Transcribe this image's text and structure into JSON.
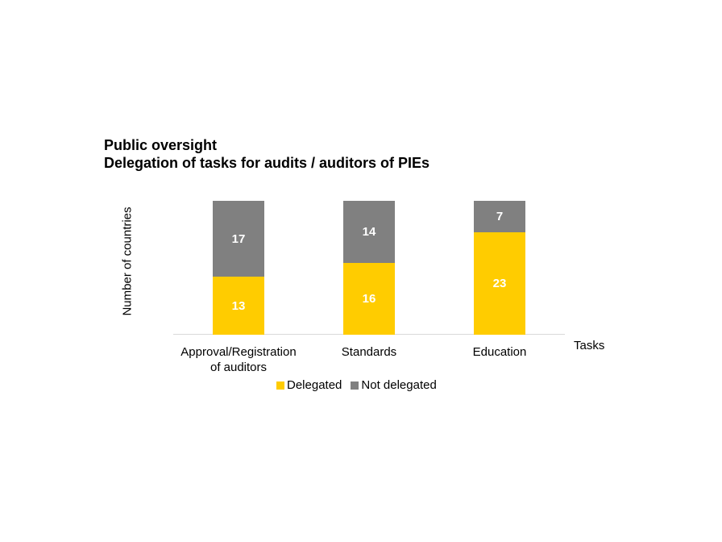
{
  "chart_data": {
    "type": "bar",
    "stacked": true,
    "title": "Public oversight\nDelegation of tasks for audits / auditors of PIEs",
    "title_lines": [
      "Public oversight",
      "Delegation of tasks for audits / auditors of PIEs"
    ],
    "xlabel": "Tasks",
    "ylabel": "Number of countries",
    "categories": [
      "Approval/Registration of auditors",
      "Standards",
      "Education"
    ],
    "category_lines": [
      [
        "Approval/Registration",
        "of auditors"
      ],
      [
        "Standards"
      ],
      [
        "Education"
      ]
    ],
    "series": [
      {
        "name": "Delegated",
        "color": "#ffcc00",
        "values": [
          13,
          16,
          23
        ]
      },
      {
        "name": "Not delegated",
        "color": "#808080",
        "values": [
          17,
          14,
          7
        ]
      }
    ],
    "ylim": [
      0,
      30
    ],
    "grid": false,
    "legend_position": "bottom",
    "data_labels": true
  }
}
